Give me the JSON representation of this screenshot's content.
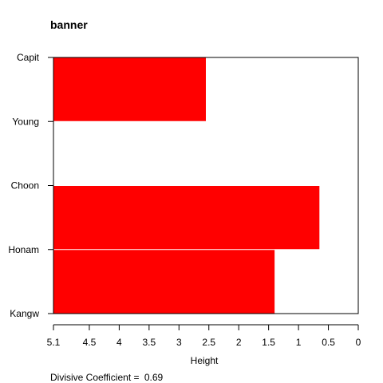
{
  "chart_data": {
    "type": "bar",
    "title": "banner",
    "xlabel": "Height",
    "ylabel": "",
    "orientation": "horizontal",
    "x_reversed": true,
    "xlim": [
      5.1,
      0
    ],
    "x_ticks": [
      "5.1",
      "4.5",
      "4",
      "3.5",
      "3",
      "2.5",
      "2",
      "1.5",
      "1",
      "0.5",
      "0"
    ],
    "x_tick_values": [
      5.1,
      4.5,
      4.0,
      3.5,
      3.0,
      2.5,
      2.0,
      1.5,
      1.0,
      0.5,
      0.0
    ],
    "y_labels": [
      "Capit",
      "Young",
      "Choon",
      "Honam",
      "Kangw"
    ],
    "bars": [
      {
        "between": [
          "Capit",
          "Young"
        ],
        "value": 2.55
      },
      {
        "between": [
          "Young",
          "Choon"
        ],
        "value": 5.1
      },
      {
        "between": [
          "Choon",
          "Honam"
        ],
        "value": 0.65
      },
      {
        "between": [
          "Honam",
          "Kangw"
        ],
        "value": 1.4
      }
    ],
    "bar_color": "#ff0000",
    "grid": false,
    "footnote_label": "Divisive Coefficient = ",
    "divisive_coefficient": "0.69"
  }
}
